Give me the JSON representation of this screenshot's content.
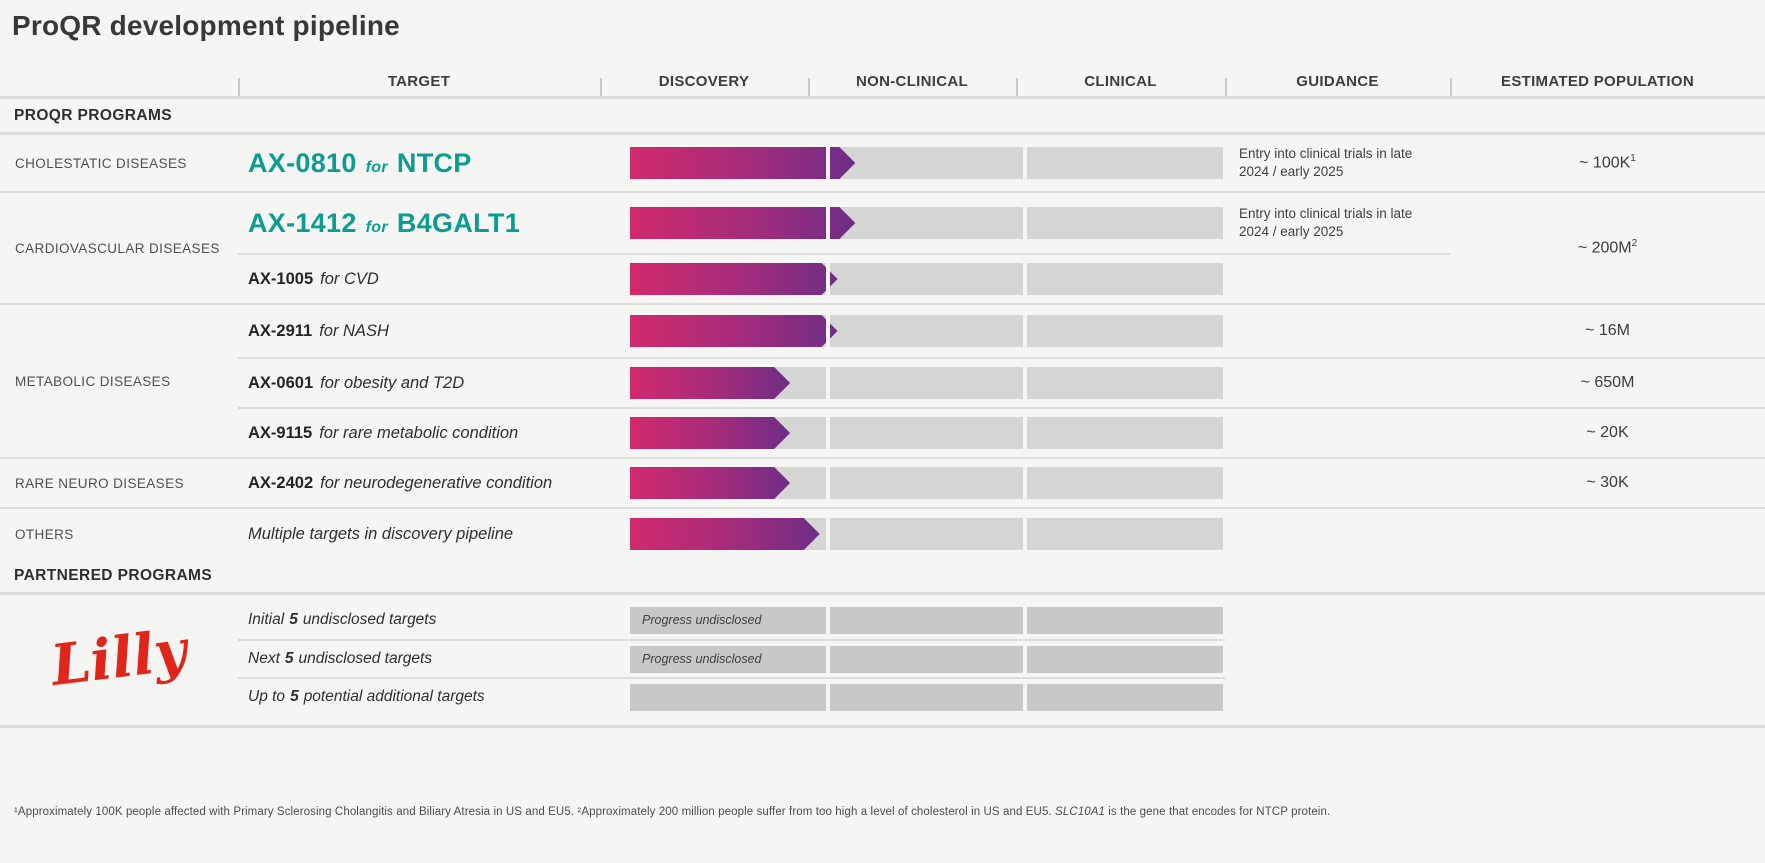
{
  "title": "ProQR development pipeline",
  "columns": {
    "target": "TARGET",
    "discovery": "DISCOVERY",
    "nonclinical": "NON-CLINICAL",
    "clinical": "CLINICAL",
    "guidance": "GUIDANCE",
    "population": "ESTIMATED POPULATION"
  },
  "sections": {
    "proqr": "PROQR PROGRAMS",
    "partnered": "PARTNERED PROGRAMS"
  },
  "rows": [
    {
      "group": "CHOLESTATIC DISEASES",
      "code": "AX-0810",
      "for_word": "for",
      "name": "NTCP",
      "bar_pct": 38,
      "guidance": "Entry into clinical trials in late 2024 / early 2025",
      "population": "~ 100K",
      "pop_sup": "1"
    },
    {
      "group": "CARDIOVASCULAR DISEASES",
      "code": "AX-1412",
      "for_word": "for",
      "name": "B4GALT1",
      "bar_pct": 38,
      "guidance": "Entry into clinical trials in late 2024 / early 2025",
      "population": "~ 200M",
      "pop_sup": "2"
    },
    {
      "code": "AX-1005",
      "desc": "for CVD",
      "bar_pct": 35
    },
    {
      "group": "METABOLIC DISEASES",
      "code": "AX-2911",
      "desc": "for NASH",
      "bar_pct": 35,
      "population": "~ 16M"
    },
    {
      "code": "AX-0601",
      "desc": "for obesity and T2D",
      "bar_pct": 27,
      "population": "~ 650M"
    },
    {
      "code": "AX-9115",
      "desc": "for rare metabolic condition",
      "bar_pct": 27,
      "population": "~ 20K"
    },
    {
      "group": "RARE NEURO DISEASES",
      "code": "AX-2402",
      "desc": "for neurodegenerative condition",
      "bar_pct": 27,
      "population": "~ 30K"
    },
    {
      "group": "OTHERS",
      "desc": "Multiple targets in discovery pipeline",
      "bar_pct": 32
    }
  ],
  "partnered_rows": [
    {
      "pre": "Initial",
      "num": "5",
      "post": "undisclosed targets",
      "bar_label": "Progress undisclosed"
    },
    {
      "pre": "Next",
      "num": "5",
      "post": "undisclosed targets",
      "bar_label": "Progress undisclosed"
    },
    {
      "pre": "Up to",
      "num": "5",
      "post": "potential additional targets",
      "bar_label": ""
    }
  ],
  "partner_logo": "Lilly",
  "footnote": {
    "part1": "¹Approximately 100K people affected with Primary Sclerosing Cholangitis and Biliary Atresia in US and EU5. ²Approximately 200 million people suffer from too high a level of cholesterol in US and EU5. ",
    "gene": "SLC10A1",
    "part2": " is the gene that encodes for NTCP protein."
  },
  "colors": {
    "bar_start": "#d22a6c",
    "bar_mid": "#a32c7c",
    "bar_end": "#6e2d87",
    "track": "#d5d5d3",
    "partner_bar": "#c8c8c6",
    "teal": "#0f9c90",
    "lilly_red": "#e0251b"
  },
  "chart_data": {
    "type": "bar",
    "title": "ProQR development pipeline",
    "orientation": "horizontal",
    "stages": [
      "Discovery",
      "Non-clinical",
      "Clinical"
    ],
    "xlim": [
      0,
      3
    ],
    "value_unit": "pipeline stages completed (of 3)",
    "categories": [
      "AX-0810 for NTCP (Cholestatic diseases)",
      "AX-1412 for B4GALT1 (Cardiovascular diseases)",
      "AX-1005 for CVD (Cardiovascular diseases)",
      "AX-2911 for NASH (Metabolic diseases)",
      "AX-0601 for obesity and T2D (Metabolic diseases)",
      "AX-9115 for rare metabolic condition (Metabolic diseases)",
      "AX-2402 for neurodegenerative condition (Rare neuro diseases)",
      "Multiple targets in discovery pipeline (Others)"
    ],
    "values": [
      1.14,
      1.14,
      1.05,
      1.05,
      0.81,
      0.81,
      0.81,
      0.96
    ],
    "guidance": [
      "Entry into clinical trials in late 2024 / early 2025",
      "Entry into clinical trials in late 2024 / early 2025",
      "",
      "",
      "",
      "",
      "",
      ""
    ],
    "estimated_population": [
      "~ 100K",
      "~ 200M",
      "~ 200M",
      "~ 16M",
      "~ 650M",
      "~ 20K",
      "~ 30K",
      ""
    ],
    "partnered_programs": [
      {
        "label": "Initial 5 undisclosed targets",
        "status": "Progress undisclosed"
      },
      {
        "label": "Next 5 undisclosed targets",
        "status": "Progress undisclosed"
      },
      {
        "label": "Up to 5 potential additional targets",
        "status": ""
      }
    ],
    "partner": "Lilly"
  }
}
